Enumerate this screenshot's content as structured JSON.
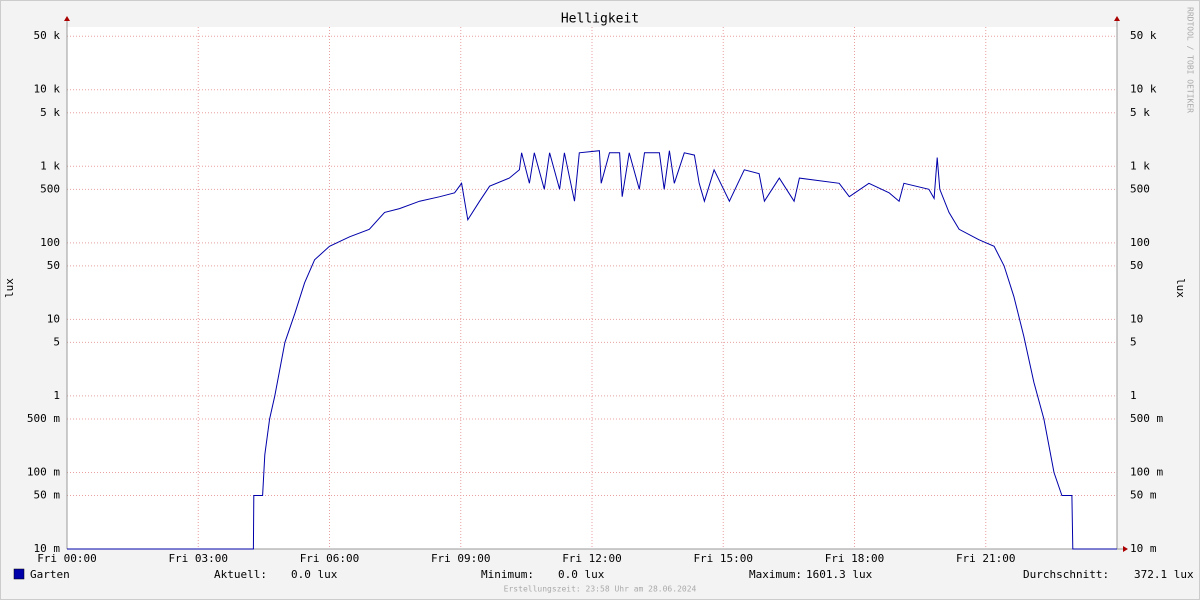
{
  "chart_data": {
    "type": "line",
    "title": "Helligkeit",
    "y_label": "lux",
    "watermark": "RRDTOOL / TOBI OETIKER",
    "footer": "Erstellungszeit: 23:58 Uhr am 28.06.2024",
    "log_y": true,
    "grid": true,
    "xlim": [
      0,
      24
    ],
    "xticks": [
      {
        "value": 0,
        "label": "Fri 00:00"
      },
      {
        "value": 3,
        "label": "Fri 03:00"
      },
      {
        "value": 6,
        "label": "Fri 06:00"
      },
      {
        "value": 9,
        "label": "Fri 09:00"
      },
      {
        "value": 12,
        "label": "Fri 12:00"
      },
      {
        "value": 15,
        "label": "Fri 15:00"
      },
      {
        "value": 18,
        "label": "Fri 18:00"
      },
      {
        "value": 21,
        "label": "Fri 21:00"
      }
    ],
    "ylim": [
      0.01,
      66000
    ],
    "yticks": [
      {
        "value": 0.01,
        "label": "10 m"
      },
      {
        "value": 0.05,
        "label": "50 m"
      },
      {
        "value": 0.1,
        "label": "100 m"
      },
      {
        "value": 0.5,
        "label": "500 m"
      },
      1,
      5,
      10,
      50,
      100,
      500,
      {
        "value": 1000,
        "label": "1 k"
      },
      {
        "value": 5000,
        "label": "5 k"
      },
      {
        "value": 10000,
        "label": "10 k"
      },
      {
        "value": 50000,
        "label": "50 k"
      }
    ],
    "x": [
      0,
      4.26,
      4.27,
      4.47,
      4.52,
      4.63,
      4.75,
      4.98,
      5.21,
      5.43,
      5.66,
      6.0,
      6.46,
      6.91,
      7.26,
      7.6,
      8.06,
      8.52,
      8.86,
      9.02,
      9.16,
      9.43,
      9.66,
      10.11,
      10.34,
      10.39,
      10.57,
      10.68,
      10.91,
      11.03,
      11.26,
      11.37,
      11.6,
      11.71,
      12.17,
      12.21,
      12.4,
      12.63,
      12.69,
      12.85,
      13.08,
      13.2,
      13.54,
      13.65,
      13.77,
      13.88,
      14.11,
      14.34,
      14.45,
      14.57,
      14.79,
      15.14,
      15.48,
      15.82,
      15.94,
      16.28,
      16.62,
      16.74,
      17.65,
      17.88,
      18.33,
      18.79,
      19.02,
      19.13,
      19.7,
      19.82,
      19.89,
      19.95,
      20.16,
      20.39,
      20.84,
      21.19,
      21.42,
      21.64,
      21.87,
      22.1,
      22.33,
      22.56,
      22.74,
      22.97,
      22.99,
      24
    ],
    "series": [
      {
        "name": "Garten",
        "color": "#0000aa",
        "values": [
          0,
          0,
          0.05,
          0.05,
          0.17,
          0.5,
          1,
          5,
          12,
          30,
          60,
          90,
          120,
          150,
          250,
          280,
          350,
          400,
          450,
          600,
          200,
          350,
          550,
          700,
          900,
          1500,
          600,
          1500,
          500,
          1500,
          500,
          1500,
          350,
          1500,
          1600,
          600,
          1500,
          1500,
          400,
          1500,
          500,
          1500,
          1500,
          500,
          1600,
          600,
          1500,
          1400,
          600,
          350,
          900,
          350,
          900,
          800,
          350,
          700,
          350,
          700,
          600,
          400,
          600,
          450,
          350,
          600,
          500,
          380,
          1300,
          500,
          250,
          150,
          110,
          90,
          50,
          20,
          6,
          1.5,
          0.5,
          0.1,
          0.05,
          0.05,
          0,
          0
        ]
      }
    ],
    "stats": [
      {
        "label": "Aktuell:",
        "value": "0.0 lux"
      },
      {
        "label": "Minimum:",
        "value": "0.0 lux"
      },
      {
        "label": "Maximum:",
        "value": "1601.3 lux"
      },
      {
        "label": "Durchschnitt:",
        "value": "372.1 lux"
      }
    ]
  }
}
